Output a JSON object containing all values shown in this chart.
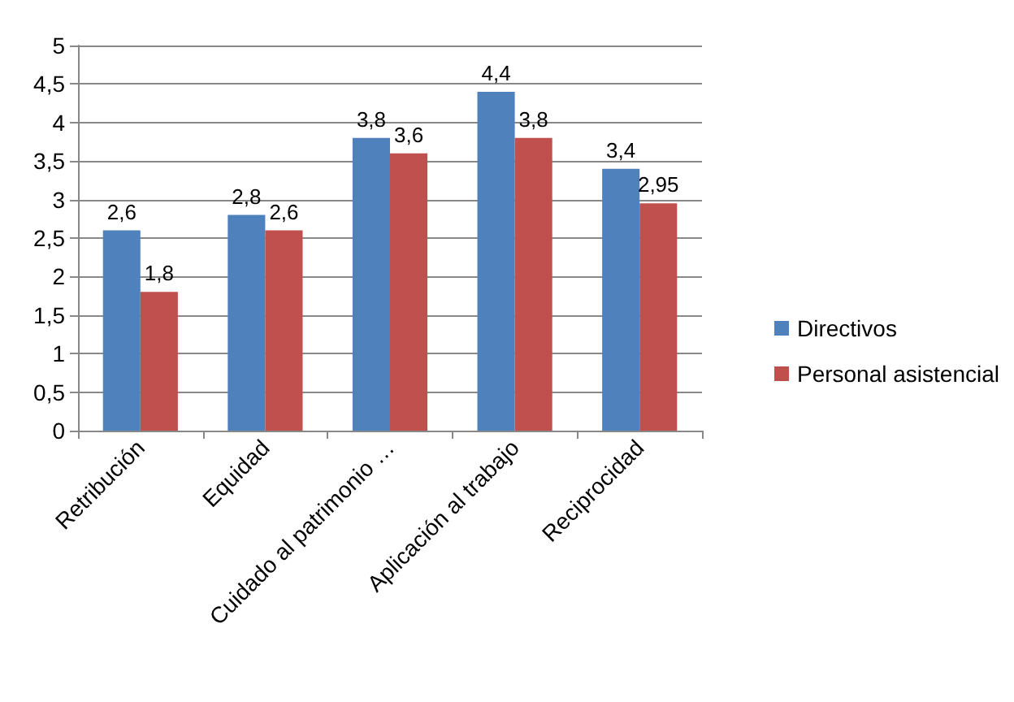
{
  "chart_data": {
    "type": "bar",
    "categories": [
      "Retribución",
      "Equidad",
      "Cuidado al patrimonio …",
      "Aplicación al trabajo",
      "Reciprocidad"
    ],
    "series": [
      {
        "name": "Directivos",
        "color": "#4f81bd",
        "values": [
          2.6,
          2.8,
          3.8,
          4.4,
          3.4
        ],
        "value_labels": [
          "2,6",
          "2,8",
          "3,8",
          "4,4",
          "3,4"
        ]
      },
      {
        "name": "Personal asistencial",
        "color": "#c0504d",
        "values": [
          1.8,
          2.6,
          3.6,
          3.8,
          2.95
        ],
        "value_labels": [
          "1,8",
          "2,6",
          "3,6",
          "3,8",
          "2,95"
        ]
      }
    ],
    "ylim": [
      0,
      5
    ],
    "yticks": [
      0,
      {
        "value": 0.5,
        "label": "0,5"
      },
      1,
      {
        "value": 1.5,
        "label": "1,5"
      },
      2,
      {
        "value": 2.5,
        "label": "2,5"
      },
      3,
      {
        "value": 3.5,
        "label": "3,5"
      },
      4,
      {
        "value": 4.5,
        "label": "4,5"
      },
      5
    ],
    "grid": true,
    "legend": "right"
  }
}
